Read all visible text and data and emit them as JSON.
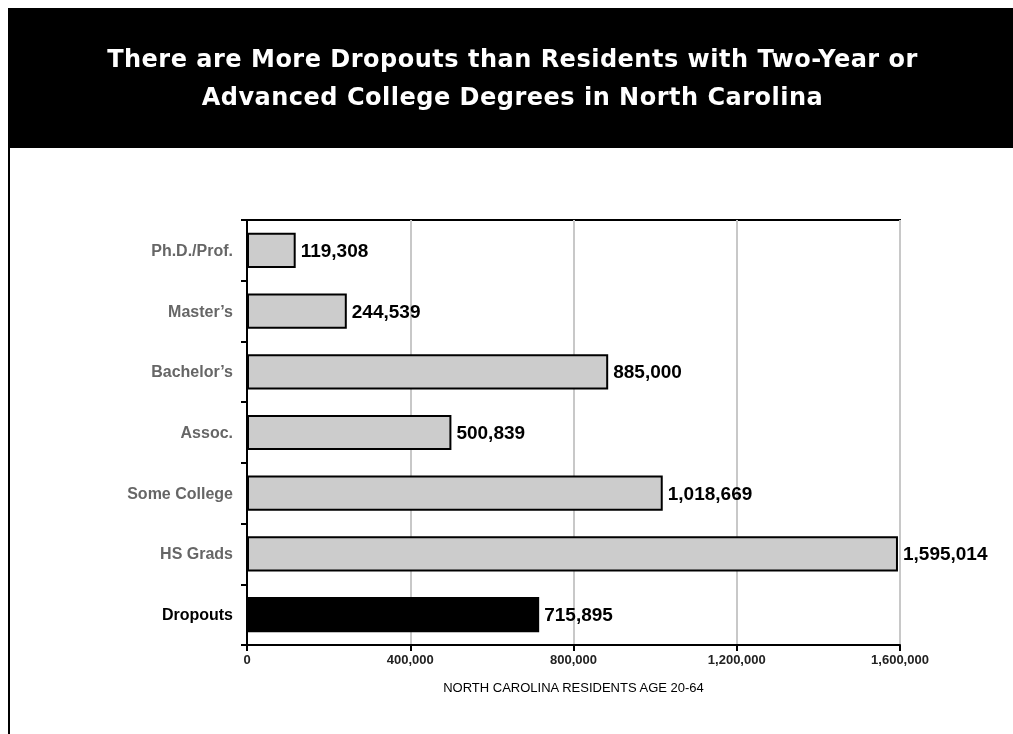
{
  "chart_data": {
    "type": "bar",
    "orientation": "horizontal",
    "title": "There are More Dropouts than Residents with Two-Year or Advanced College Degrees in North Carolina",
    "xlabel": "NORTH CAROLINA RESIDENTS AGE 20-64",
    "categories": [
      "Ph.D./Prof.",
      "Master’s",
      "Bachelor’s",
      "Assoc.",
      "Some College",
      "HS Grads",
      "Dropouts"
    ],
    "values": [
      119308,
      244539,
      885000,
      500839,
      1018669,
      1595014,
      715895
    ],
    "value_labels": [
      "119,308",
      "244,539",
      "885,000",
      "500,839",
      "1,018,669",
      "1,595,014",
      "715,895"
    ],
    "colors": [
      "#cccccc",
      "#cccccc",
      "#cccccc",
      "#cccccc",
      "#cccccc",
      "#cccccc",
      "#000000"
    ],
    "xlim": [
      0,
      1600000
    ],
    "xticks": [
      0,
      {
        "value": 400000,
        "label": "400,000"
      },
      {
        "value": 800000,
        "label": "800,000"
      },
      {
        "value": 1200000,
        "label": "1,200,000"
      },
      {
        "value": 1600000,
        "label": "1,600,000"
      }
    ],
    "grid": "x"
  }
}
